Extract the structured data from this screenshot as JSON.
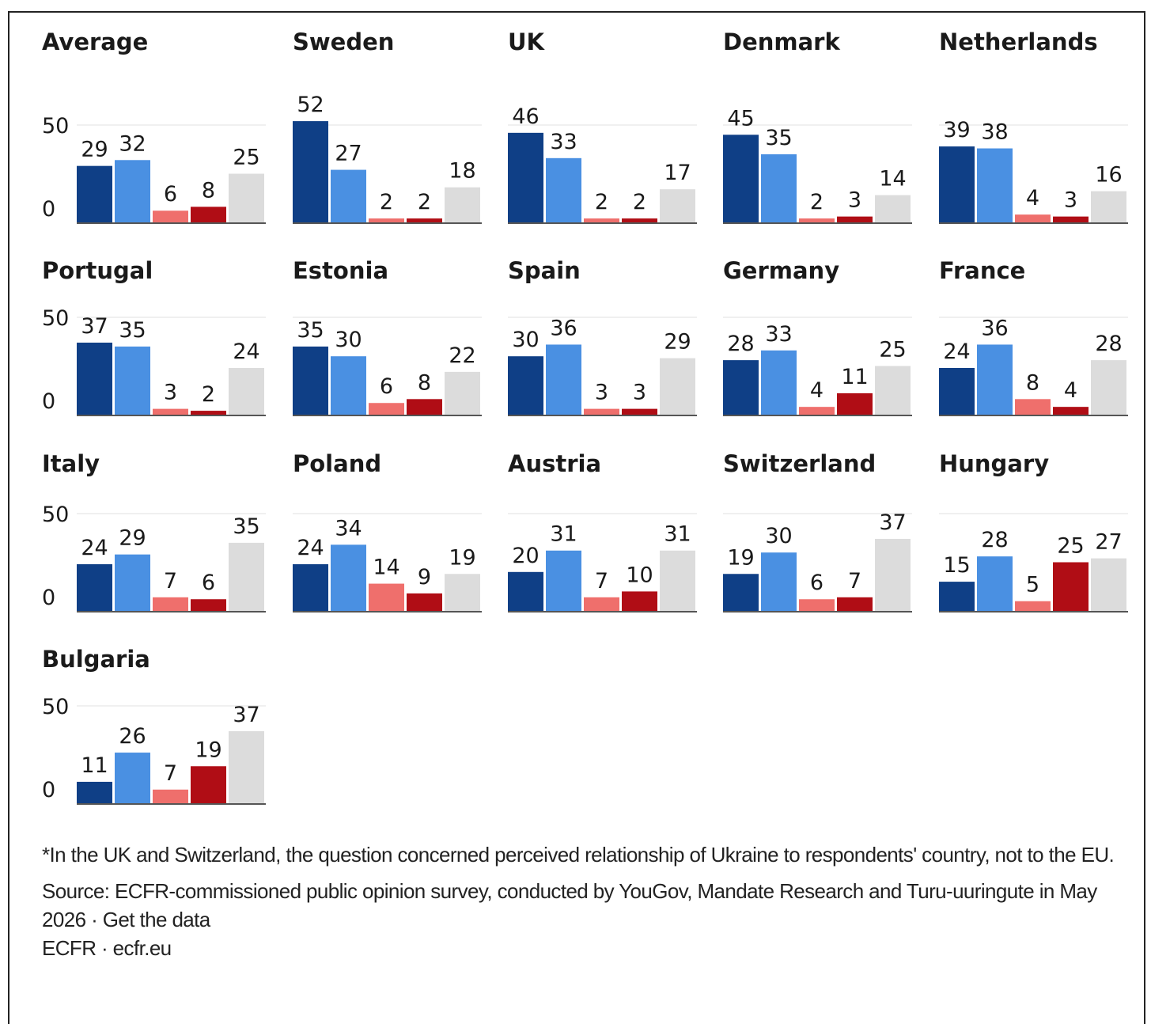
{
  "chart_data": {
    "type": "bar",
    "ylim": [
      0,
      50
    ],
    "yticks": [
      0,
      50
    ],
    "grid": true,
    "series_colors": [
      "#0f3f86",
      "#4a90e2",
      "#ef6f6c",
      "#b00d15",
      "#dcdcdc"
    ],
    "panels": [
      {
        "title": "Average",
        "values": [
          29,
          32,
          6,
          8,
          25
        ]
      },
      {
        "title": "Sweden",
        "values": [
          52,
          27,
          2,
          2,
          18
        ]
      },
      {
        "title": "UK",
        "values": [
          46,
          33,
          2,
          2,
          17
        ]
      },
      {
        "title": "Denmark",
        "values": [
          45,
          35,
          2,
          3,
          14
        ]
      },
      {
        "title": "Netherlands",
        "values": [
          39,
          38,
          4,
          3,
          16
        ]
      },
      {
        "title": "Portugal",
        "values": [
          37,
          35,
          3,
          2,
          24
        ]
      },
      {
        "title": "Estonia",
        "values": [
          35,
          30,
          6,
          8,
          22
        ]
      },
      {
        "title": "Spain",
        "values": [
          30,
          36,
          3,
          3,
          29
        ]
      },
      {
        "title": "Germany",
        "values": [
          28,
          33,
          4,
          11,
          25
        ]
      },
      {
        "title": "France",
        "values": [
          24,
          36,
          8,
          4,
          28
        ]
      },
      {
        "title": "Italy",
        "values": [
          24,
          29,
          7,
          6,
          35
        ]
      },
      {
        "title": "Poland",
        "values": [
          24,
          34,
          14,
          9,
          19
        ]
      },
      {
        "title": "Austria",
        "values": [
          20,
          31,
          7,
          10,
          31
        ]
      },
      {
        "title": "Switzerland",
        "values": [
          19,
          30,
          6,
          7,
          37
        ]
      },
      {
        "title": "Hungary",
        "values": [
          15,
          28,
          5,
          25,
          27
        ]
      },
      {
        "title": "Bulgaria",
        "values": [
          11,
          26,
          7,
          19,
          37
        ]
      }
    ]
  },
  "notes": {
    "footnote": "*In the UK and Switzerland, the question concerned perceived relationship of Ukraine to respondents' country, not to the EU.",
    "source": "Source: ECFR-commissioned public opinion survey, conducted by YouGov, Mandate Research and Turu-uuringute in May 2026 · Get the data",
    "credit": "ECFR · ecfr.eu"
  }
}
